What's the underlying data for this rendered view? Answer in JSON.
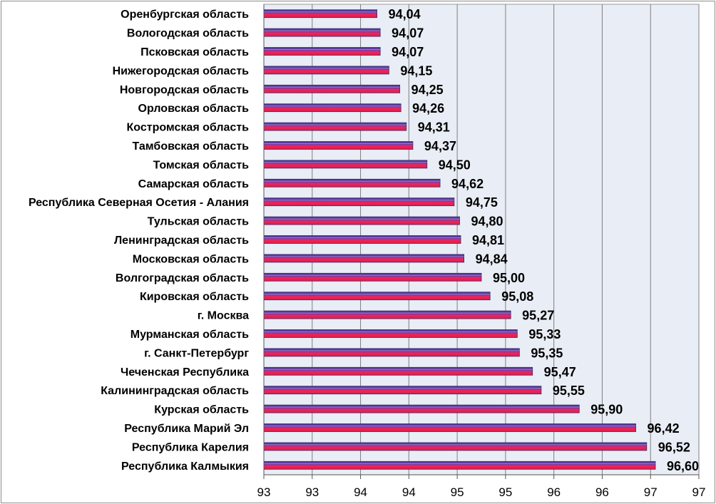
{
  "chart_data": {
    "type": "bar",
    "orientation": "horizontal",
    "categories": [
      "Оренбургская область",
      "Вологодская область",
      "Псковская область",
      "Нижегородская область",
      "Новгородская область",
      "Орловская область",
      "Костромская область",
      "Тамбовская область",
      "Томская область",
      "Самарская область",
      "Республика Северная Осетия - Алания",
      "Тульская область",
      "Ленинградская область",
      "Московская область",
      "Волгоградская область",
      "Кировская область",
      "г. Москва",
      "Мурманская область",
      "г. Санкт-Петербург",
      "Чеченская Республика",
      "Калининградская область",
      "Курская область",
      "Республика Марий Эл",
      "Республика Карелия",
      "Республика Калмыкия"
    ],
    "values": [
      94.04,
      94.07,
      94.07,
      94.15,
      94.25,
      94.26,
      94.31,
      94.37,
      94.5,
      94.62,
      94.75,
      94.8,
      94.81,
      94.84,
      95.0,
      95.08,
      95.27,
      95.33,
      95.35,
      95.47,
      95.55,
      95.9,
      96.42,
      96.52,
      96.6
    ],
    "value_labels": [
      "94,04",
      "94,07",
      "94,07",
      "94,15",
      "94,25",
      "94,26",
      "94,31",
      "94,37",
      "94,50",
      "94,62",
      "94,75",
      "94,80",
      "94,81",
      "94,84",
      "95,00",
      "95,08",
      "95,27",
      "95,33",
      "95,35",
      "95,47",
      "95,55",
      "95,90",
      "96,42",
      "96,52",
      "96,60"
    ],
    "xlim": [
      93,
      97.0
    ],
    "x_tick_labels": [
      "93",
      "93",
      "94",
      "94",
      "95",
      "95",
      "96",
      "96",
      "97",
      "97"
    ],
    "grid": "vertical",
    "legend": "none",
    "colors": {
      "bar_top": "#5b3fa0",
      "bar_bottom": "#e8245a",
      "bar_outline": "#3a2a6b",
      "plot_background": "#e9edf5",
      "gridline": "#7f7f7f"
    }
  }
}
